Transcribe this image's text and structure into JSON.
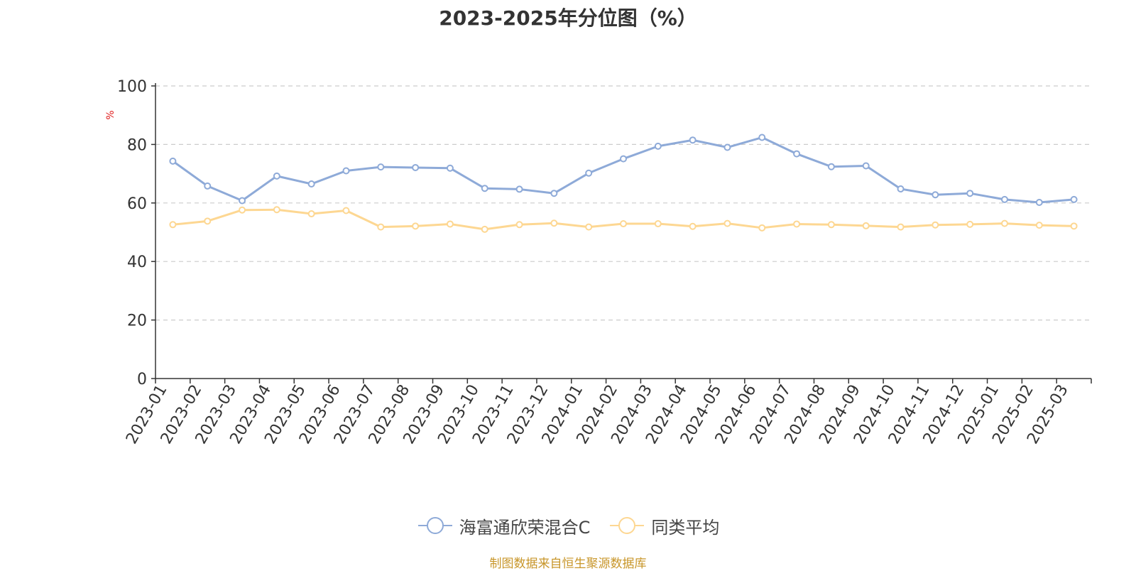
{
  "chart_data": {
    "type": "line",
    "title": "2023-2025年分位图（%）",
    "ylabel": "%",
    "xlabel": "",
    "ylim": [
      0,
      100
    ],
    "yticks": [
      0,
      20,
      40,
      60,
      80,
      100
    ],
    "grid": true,
    "legend_position": "bottom",
    "categories": [
      "2023-01",
      "2023-02",
      "2023-03",
      "2023-04",
      "2023-05",
      "2023-06",
      "2023-07",
      "2023-08",
      "2023-09",
      "2023-10",
      "2023-11",
      "2023-12",
      "2024-01",
      "2024-02",
      "2024-03",
      "2024-04",
      "2024-05",
      "2024-06",
      "2024-07",
      "2024-08",
      "2024-09",
      "2024-10",
      "2024-11",
      "2024-12",
      "2025-01",
      "2025-02",
      "2025-03"
    ],
    "series": [
      {
        "name": "海富通欣荣混合C",
        "color": "#8eaad8",
        "values": [
          74.3,
          65.8,
          60.8,
          69.2,
          66.5,
          71.0,
          72.3,
          72.1,
          71.9,
          65.0,
          64.7,
          63.3,
          70.2,
          75.1,
          79.4,
          81.5,
          79.0,
          82.4,
          76.8,
          72.4,
          72.7,
          64.8,
          62.8,
          63.3,
          61.2,
          60.2,
          61.2
        ]
      },
      {
        "name": "同类平均",
        "color": "#fdd792",
        "values": [
          52.6,
          53.8,
          57.6,
          57.7,
          56.3,
          57.4,
          51.8,
          52.1,
          52.8,
          51.0,
          52.6,
          53.1,
          51.8,
          52.9,
          52.9,
          52.0,
          53.0,
          51.5,
          52.8,
          52.6,
          52.2,
          51.8,
          52.5,
          52.7,
          53.0,
          52.4,
          52.1
        ]
      }
    ]
  },
  "footer": {
    "source": "制图数据来自恒生聚源数据库"
  }
}
